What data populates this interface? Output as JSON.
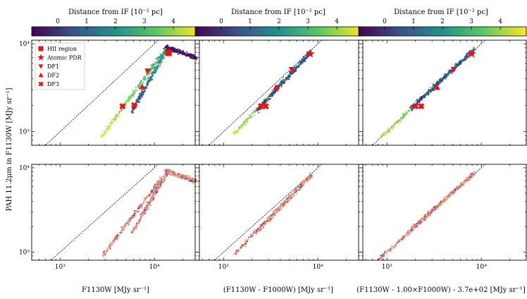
{
  "figure": {
    "ylabel": "PAH 11.2μm in F1130W [MJy sr⁻¹]",
    "colorbar_label": "Distance from IF [10⁻² pc]",
    "colorbar_ticks": [
      "0",
      "1",
      "2",
      "3",
      "4"
    ],
    "colorbar_range": [
      -0.9,
      4.9
    ],
    "colormap": [
      "#440154",
      "#3b528b",
      "#21918c",
      "#5ec962",
      "#fde725"
    ],
    "marker_color": "#ee1111",
    "density_colors": [
      "#1e1b3a",
      "#3d2f6e",
      "#6a3d8e",
      "#b55a8a",
      "#e8846f",
      "#f4b27f"
    ]
  },
  "legend": [
    {
      "label": "HII region",
      "marker": "square"
    },
    {
      "label": "Atomic PDR",
      "marker": "star"
    },
    {
      "label": "DF1",
      "marker": "triangle-down"
    },
    {
      "label": "DF2",
      "marker": "triangle-up"
    },
    {
      "label": "DF3",
      "marker": "x"
    }
  ],
  "chart_data": [
    {
      "type": "scatter",
      "row": 0,
      "col": 0,
      "xscale": "log",
      "yscale": "log",
      "xlim": [
        500,
        30000
      ],
      "ylim": [
        700,
        11000
      ],
      "xlabel": "",
      "ylabel": "",
      "xticks": [],
      "yticks": [
        "10³",
        "10⁴"
      ],
      "one_to_one_line": true,
      "color_by": "distance",
      "cloud": [
        {
          "x0": 2800,
          "x1": 13000,
          "y0": 900,
          "y1": 8500,
          "dist0": 4.5,
          "dist1": 2.7
        },
        {
          "x0": 5800,
          "x1": 13500,
          "y0": 1700,
          "y1": 8600,
          "dist0": 0.1,
          "dist1": 2.6
        },
        {
          "x0": 13000,
          "x1": 28000,
          "y0": 9300,
          "y1": 6900,
          "dist0": -0.5,
          "dist1": -0.5
        }
      ],
      "markers": [
        {
          "label": "HII region",
          "x": 14100,
          "y": 7900
        },
        {
          "label": "Atomic PDR",
          "x": 14100,
          "y": 7900
        },
        {
          "label": "DF1",
          "x": 8500,
          "y": 4900
        },
        {
          "label": "DF2",
          "x": 7400,
          "y": 3250
        },
        {
          "label": "DF3",
          "x": 4600,
          "y": 1950
        },
        {
          "label": "DF3",
          "x": 6100,
          "y": 2000
        }
      ]
    },
    {
      "type": "scatter",
      "row": 0,
      "col": 1,
      "xscale": "log",
      "yscale": "log",
      "xlim": [
        500,
        30000
      ],
      "ylim": [
        700,
        11000
      ],
      "xlabel": "",
      "ylabel": "",
      "xticks": [],
      "yticks": [],
      "one_to_one_line": true,
      "color_by": "distance",
      "cloud": [
        {
          "x0": 1300,
          "x1": 8500,
          "y0": 950,
          "y1": 8300,
          "dist0": 4.5,
          "dist1": 1.5
        },
        {
          "x0": 2300,
          "x1": 8600,
          "y0": 1750,
          "y1": 8200,
          "dist0": 0.2,
          "dist1": 0.4
        }
      ],
      "markers": [
        {
          "label": "Atomic PDR",
          "x": 8300,
          "y": 7700
        },
        {
          "label": "DF1",
          "x": 5300,
          "y": 5100
        },
        {
          "label": "DF2",
          "x": 3600,
          "y": 3200
        },
        {
          "label": "DF3",
          "x": 2500,
          "y": 1950
        },
        {
          "label": "DF3",
          "x": 2800,
          "y": 1950
        }
      ]
    },
    {
      "type": "scatter",
      "row": 0,
      "col": 2,
      "xscale": "log",
      "yscale": "log",
      "xlim": [
        500,
        30000
      ],
      "ylim": [
        700,
        11000
      ],
      "xlabel": "",
      "ylabel": "",
      "xticks": [],
      "yticks": [],
      "one_to_one_line": true,
      "color_by": "distance",
      "cloud": [
        {
          "x0": 850,
          "x1": 8500,
          "y0": 850,
          "y1": 8800,
          "dist0": 4.5,
          "dist1": 1.5
        },
        {
          "x0": 1800,
          "x1": 8400,
          "y0": 1850,
          "y1": 8600,
          "dist0": 0.2,
          "dist1": 0.5
        }
      ],
      "markers": [
        {
          "label": "Atomic PDR",
          "x": 7900,
          "y": 7700
        },
        {
          "label": "DF1",
          "x": 5100,
          "y": 5100
        },
        {
          "label": "DF2",
          "x": 3400,
          "y": 3200
        },
        {
          "label": "DF3",
          "x": 2000,
          "y": 1950
        },
        {
          "label": "DF3",
          "x": 2300,
          "y": 1950
        }
      ]
    },
    {
      "type": "scatter",
      "row": 1,
      "col": 0,
      "xscale": "log",
      "yscale": "log",
      "xlim": [
        500,
        30000
      ],
      "ylim": [
        800,
        11000
      ],
      "xlabel": "F1130W [MJy sr⁻¹]",
      "ylabel": "",
      "xticks": [
        "10³",
        "10⁴"
      ],
      "yticks": [
        "10³",
        "10⁴"
      ],
      "one_to_one_line": true,
      "color_by": "density",
      "cloud": [
        {
          "x0": 2800,
          "x1": 13000,
          "y0": 900,
          "y1": 8500
        },
        {
          "x0": 5800,
          "x1": 13500,
          "y0": 1700,
          "y1": 8600
        },
        {
          "x0": 13000,
          "x1": 28000,
          "y0": 9300,
          "y1": 6900
        }
      ]
    },
    {
      "type": "scatter",
      "row": 1,
      "col": 1,
      "xscale": "log",
      "yscale": "log",
      "xlim": [
        500,
        30000
      ],
      "ylim": [
        800,
        11000
      ],
      "xlabel": "(F1130W - F1000W) [MJy sr⁻¹]",
      "ylabel": "",
      "xticks": [
        "10³",
        "10⁴"
      ],
      "yticks": [],
      "one_to_one_line": true,
      "color_by": "density",
      "cloud": [
        {
          "x0": 1300,
          "x1": 8500,
          "y0": 950,
          "y1": 8300
        },
        {
          "x0": 2300,
          "x1": 8600,
          "y0": 1750,
          "y1": 8200
        }
      ]
    },
    {
      "type": "scatter",
      "row": 1,
      "col": 2,
      "xscale": "log",
      "yscale": "log",
      "xlim": [
        500,
        30000
      ],
      "ylim": [
        800,
        11000
      ],
      "xlabel": "(F1130W - 1.00×F1000W) - 3.7e+02 [MJy sr⁻¹]",
      "ylabel": "",
      "xticks": [
        "10³",
        "10⁴"
      ],
      "yticks": [],
      "one_to_one_line": true,
      "color_by": "density",
      "cloud": [
        {
          "x0": 850,
          "x1": 8500,
          "y0": 850,
          "y1": 8800
        },
        {
          "x0": 1800,
          "x1": 8400,
          "y0": 1850,
          "y1": 8600
        }
      ]
    }
  ]
}
